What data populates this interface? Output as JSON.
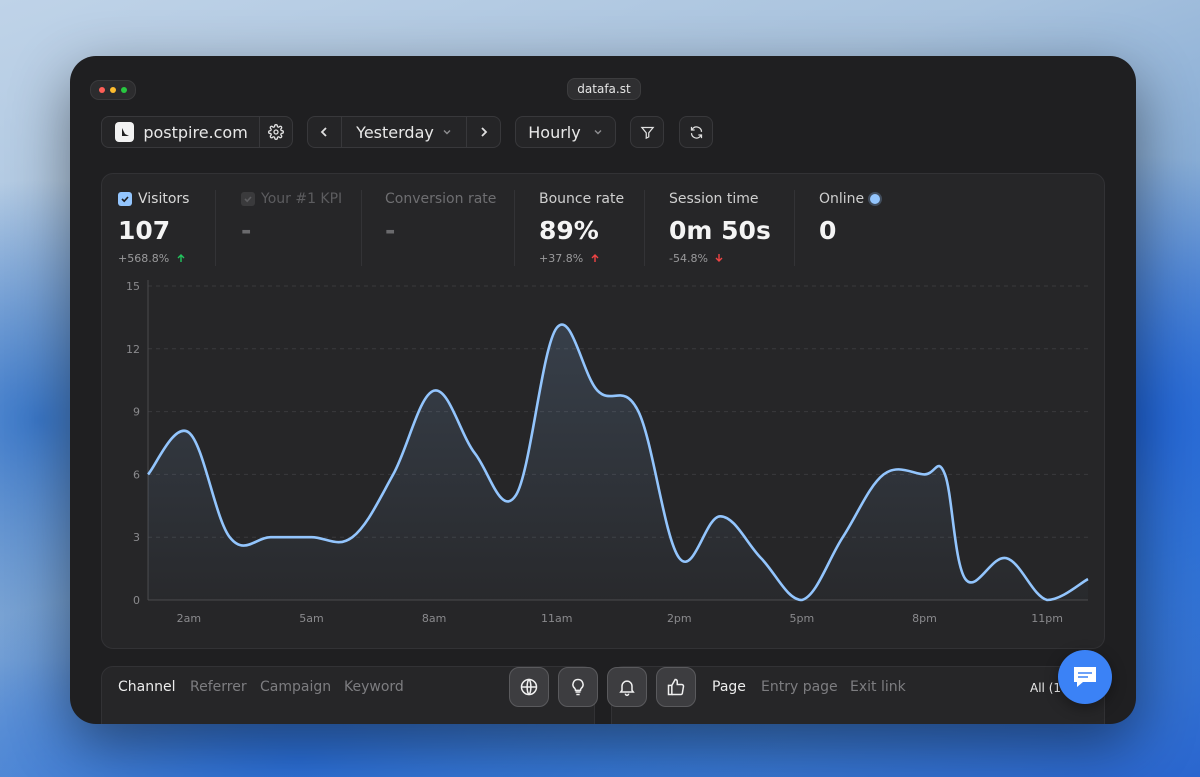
{
  "window": {
    "url": "datafa.st"
  },
  "toolbar": {
    "site_name": "postpire.com",
    "date_range": "Yesterday",
    "granularity": "Hourly"
  },
  "metrics": [
    {
      "label": "Visitors",
      "value": "107",
      "change": "+568.8%",
      "trend": "up",
      "checked": true
    },
    {
      "label": "Your #1 KPI",
      "value": "-",
      "checked": false
    },
    {
      "label": "Conversion rate",
      "value": "-"
    },
    {
      "label": "Bounce rate",
      "value": "89%",
      "change": "+37.8%",
      "trend": "up-bad"
    },
    {
      "label": "Session time",
      "value": "0m 50s",
      "change": "-54.8%",
      "trend": "down-bad"
    },
    {
      "label": "Online",
      "value": "0"
    }
  ],
  "colors": {
    "line": "#93c5fd",
    "accent": "#3b82f6",
    "good": "#22c55e",
    "bad": "#ef4444"
  },
  "chart_data": {
    "type": "area",
    "x_labels": [
      "2am",
      "5am",
      "8am",
      "11am",
      "2pm",
      "5pm",
      "8pm",
      "11pm"
    ],
    "x": [
      0,
      1,
      2,
      3,
      4,
      5,
      6,
      7,
      8,
      9,
      10,
      11,
      12,
      13,
      14,
      15,
      16,
      17,
      18,
      19,
      19.5,
      20,
      21,
      22,
      23
    ],
    "values": [
      6,
      8,
      3,
      3,
      3,
      3,
      6,
      10,
      7,
      5,
      13,
      10,
      9,
      2,
      4,
      2,
      0,
      3,
      6,
      6,
      6,
      1,
      2,
      0,
      1
    ],
    "yticks": [
      0,
      3,
      6,
      9,
      12,
      15
    ],
    "ylim": [
      0,
      15
    ],
    "grid": true
  },
  "bottom_left": {
    "tabs": [
      "Channel",
      "Referrer",
      "Campaign",
      "Keyword"
    ]
  },
  "bottom_right": {
    "tabs": [
      "Page",
      "Entry page",
      "Exit link"
    ],
    "filter": "All (1"
  }
}
